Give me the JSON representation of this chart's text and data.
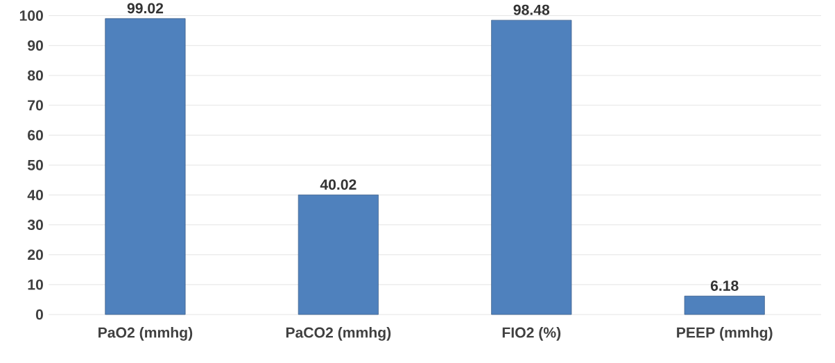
{
  "chart_data": {
    "type": "bar",
    "categories": [
      "PaO2 (mmhg)",
      "PaCO2 (mmhg)",
      "FIO2 (%)",
      "PEEP (mmhg)"
    ],
    "values": [
      99.02,
      40.02,
      98.48,
      6.18
    ],
    "color": "#4f81bd",
    "ylim": [
      0,
      100
    ],
    "yticks": [
      0,
      10,
      20,
      30,
      40,
      50,
      60,
      70,
      80,
      90,
      100
    ],
    "grid": "y",
    "data_labels": true
  }
}
